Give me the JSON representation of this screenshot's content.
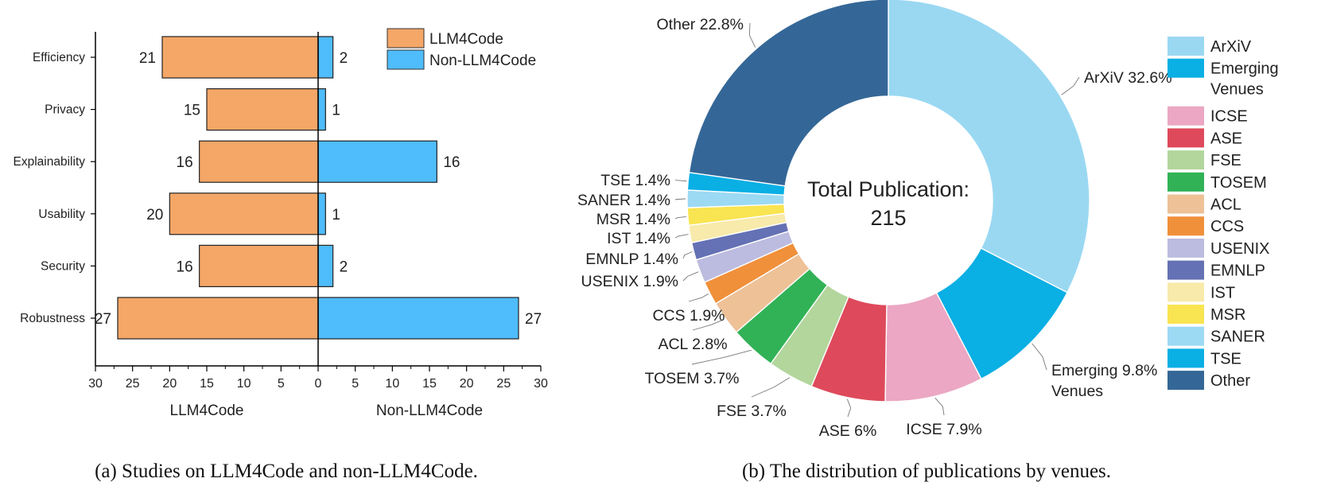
{
  "chart_data": [
    {
      "type": "bar",
      "orientation": "horizontal-diverging",
      "caption": "(a) Studies on LLM4Code and non-LLM4Code.",
      "categories": [
        "Efficiency",
        "Privacy",
        "Explainability",
        "Usability",
        "Security",
        "Robustness"
      ],
      "series": [
        {
          "name": "LLM4Code",
          "color": "#F4A767",
          "values": [
            21,
            15,
            16,
            20,
            16,
            27
          ]
        },
        {
          "name": "Non-LLM4Code",
          "color": "#4FBCFB",
          "values": [
            2,
            1,
            16,
            1,
            2,
            27
          ]
        }
      ],
      "xlabel_left": "LLM4Code",
      "xlabel_right": "Non-LLM4Code",
      "xticks": [
        "30",
        "25",
        "20",
        "15",
        "10",
        "5",
        "0",
        "5",
        "10",
        "15",
        "20",
        "25",
        "30"
      ],
      "xlim": [
        -30,
        30
      ],
      "legend_position": "top-right"
    },
    {
      "type": "pie",
      "variant": "donut",
      "caption": "(b) The distribution of publications by venues.",
      "center_text": [
        "Total Publication:",
        "215"
      ],
      "slices": [
        {
          "name": "ArXiV",
          "label": "ArXiV 32.6%",
          "value": 32.6,
          "color": "#9AD8F2"
        },
        {
          "name": "Emerging Venues",
          "label": [
            "Emerging 9.8%",
            "Venues"
          ],
          "value": 9.8,
          "color": "#0AAFE4"
        },
        {
          "name": "ICSE",
          "label": "ICSE 7.9%",
          "value": 7.9,
          "color": "#EBA7C3"
        },
        {
          "name": "ASE",
          "label": "ASE 6%",
          "value": 6.0,
          "color": "#DE4A5B"
        },
        {
          "name": "FSE",
          "label": "FSE 3.7%",
          "value": 3.7,
          "color": "#B3D69D"
        },
        {
          "name": "TOSEM",
          "label": "TOSEM 3.7%",
          "value": 3.7,
          "color": "#31B256"
        },
        {
          "name": "ACL",
          "label": "ACL 2.8%",
          "value": 2.8,
          "color": "#EEC197"
        },
        {
          "name": "CCS",
          "label": "CCS 1.9%",
          "value": 1.9,
          "color": "#F0903B"
        },
        {
          "name": "USENIX",
          "label": "USENIX 1.9%",
          "value": 1.9,
          "color": "#BCBCE0"
        },
        {
          "name": "EMNLP",
          "label": "EMNLP 1.4%",
          "value": 1.4,
          "color": "#6471B4"
        },
        {
          "name": "IST",
          "label": "IST 1.4%",
          "value": 1.4,
          "color": "#F7EAAA"
        },
        {
          "name": "MSR",
          "label": "MSR 1.4%",
          "value": 1.4,
          "color": "#F9E451"
        },
        {
          "name": "SANER",
          "label": "SANER 1.4%",
          "value": 1.4,
          "color": "#9CD9F3"
        },
        {
          "name": "TSE",
          "label": "TSE 1.4%",
          "value": 1.4,
          "color": "#0AAFE4"
        },
        {
          "name": "Other",
          "label": "Other 22.8%",
          "value": 22.8,
          "color": "#346797"
        }
      ],
      "legend": [
        {
          "lines": [
            "ArXiV"
          ],
          "color": "#9AD8F2"
        },
        {
          "lines": [
            "Emerging",
            "Venues"
          ],
          "color": "#0AAFE4"
        },
        {
          "lines": [
            "ICSE"
          ],
          "color": "#EBA7C3"
        },
        {
          "lines": [
            "ASE"
          ],
          "color": "#DE4A5B"
        },
        {
          "lines": [
            "FSE"
          ],
          "color": "#B3D69D"
        },
        {
          "lines": [
            "TOSEM"
          ],
          "color": "#31B256"
        },
        {
          "lines": [
            "ACL"
          ],
          "color": "#EEC197"
        },
        {
          "lines": [
            "CCS"
          ],
          "color": "#F0903B"
        },
        {
          "lines": [
            "USENIX"
          ],
          "color": "#BCBCE0"
        },
        {
          "lines": [
            "EMNLP"
          ],
          "color": "#6471B4"
        },
        {
          "lines": [
            "IST"
          ],
          "color": "#F7EAAA"
        },
        {
          "lines": [
            "MSR"
          ],
          "color": "#F9E451"
        },
        {
          "lines": [
            "SANER"
          ],
          "color": "#9CD9F3"
        },
        {
          "lines": [
            "TSE"
          ],
          "color": "#0AAFE4"
        },
        {
          "lines": [
            "Other"
          ],
          "color": "#346797"
        }
      ],
      "legend_position": "right"
    }
  ]
}
